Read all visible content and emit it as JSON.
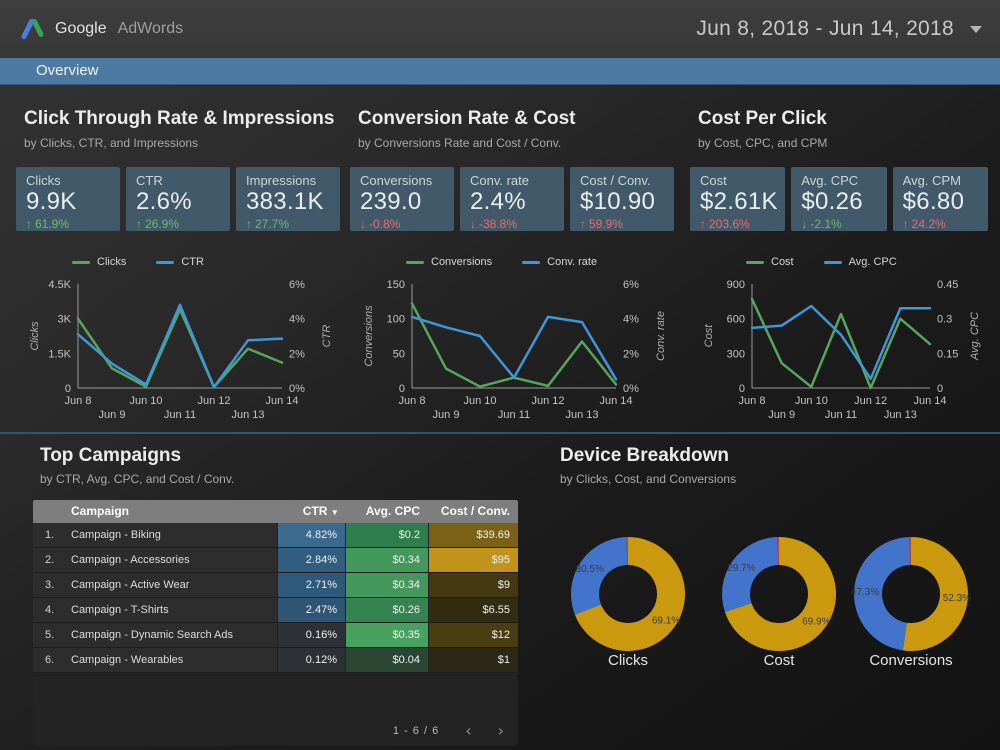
{
  "header": {
    "logo_primary": "Google",
    "logo_secondary": "AdWords",
    "date_range": "Jun 8, 2018 - Jun 14, 2018"
  },
  "tabbar": {
    "active_tab": "Overview"
  },
  "colors": {
    "tab_bar": "#4d7aa2",
    "card_bg": "#42596a",
    "line_green": "#58a55c",
    "line_blue": "#3d97d8",
    "donut_gold": "#cb990e",
    "donut_blue": "#4374cc",
    "donut_red": "#bf4236",
    "delta_good": "#68bb6c",
    "delta_bad": "#e86c6c",
    "table_header_bg": "#7e7e7e"
  },
  "sections": [
    {
      "title": "Click Through Rate & Impressions",
      "subtitle": "by Clicks, CTR, and Impressions",
      "cards": [
        {
          "label": "Clicks",
          "value": "9.9K",
          "delta": "61.9%",
          "direction": "up",
          "trend": "good"
        },
        {
          "label": "CTR",
          "value": "2.6%",
          "delta": "26.9%",
          "direction": "up",
          "trend": "good"
        },
        {
          "label": "Impressions",
          "value": "383.1K",
          "delta": "27.7%",
          "direction": "up",
          "trend": "good"
        }
      ]
    },
    {
      "title": "Conversion Rate & Cost",
      "subtitle": "by Conversions Rate and Cost / Conv.",
      "cards": [
        {
          "label": "Conversions",
          "value": "239.0",
          "delta": "-0.8%",
          "direction": "down",
          "trend": "bad"
        },
        {
          "label": "Conv. rate",
          "value": "2.4%",
          "delta": "-38.8%",
          "direction": "down",
          "trend": "bad"
        },
        {
          "label": "Cost / Conv.",
          "value": "$10.90",
          "delta": "59.9%",
          "direction": "up",
          "trend": "bad"
        }
      ]
    },
    {
      "title": "Cost Per Click",
      "subtitle": "by Cost, CPC, and CPM",
      "cards": [
        {
          "label": "Cost",
          "value": "$2.61K",
          "delta": "203.6%",
          "direction": "up",
          "trend": "bad"
        },
        {
          "label": "Avg. CPC",
          "value": "$0.26",
          "delta": "-2.1%",
          "direction": "down",
          "trend": "good"
        },
        {
          "label": "Avg. CPM",
          "value": "$6.80",
          "delta": "24.2%",
          "direction": "up",
          "trend": "bad"
        }
      ]
    }
  ],
  "chart_data": [
    {
      "id": "clicks-ctr",
      "type": "line",
      "x": [
        "Jun 8",
        "Jun 9",
        "Jun 10",
        "Jun 11",
        "Jun 12",
        "Jun 13",
        "Jun 14"
      ],
      "series": [
        {
          "name": "Clicks",
          "axis": "left",
          "color": "#58a55c",
          "values": [
            3000,
            850,
            60,
            3400,
            40,
            1700,
            1100
          ]
        },
        {
          "name": "CTR",
          "axis": "right",
          "color": "#3d97d8",
          "values": [
            3.1,
            1.4,
            0.2,
            4.8,
            0.05,
            2.75,
            2.85
          ]
        }
      ],
      "left_axis": {
        "title": "Clicks",
        "max": 4500,
        "ticks": [
          {
            "v": 0,
            "label": "0"
          },
          {
            "v": 1500,
            "label": "1.5K"
          },
          {
            "v": 3000,
            "label": "3K"
          },
          {
            "v": 4500,
            "label": "4.5K"
          }
        ]
      },
      "right_axis": {
        "title": "CTR",
        "max": 6,
        "ticks": [
          {
            "v": 0,
            "label": "0%"
          },
          {
            "v": 2,
            "label": "2%"
          },
          {
            "v": 4,
            "label": "4%"
          },
          {
            "v": 6,
            "label": "6%"
          }
        ]
      },
      "legend_position": "top",
      "grid": false
    },
    {
      "id": "conversions-rate",
      "type": "line",
      "x": [
        "Jun 8",
        "Jun 9",
        "Jun 10",
        "Jun 11",
        "Jun 12",
        "Jun 13",
        "Jun 14"
      ],
      "series": [
        {
          "name": "Conversions",
          "axis": "left",
          "color": "#58a55c",
          "values": [
            122,
            28,
            2,
            15,
            3,
            67,
            5
          ]
        },
        {
          "name": "Conv. rate",
          "axis": "right",
          "color": "#3d97d8",
          "values": [
            4.1,
            3.5,
            3.0,
            0.6,
            4.1,
            3.8,
            0.5
          ]
        }
      ],
      "left_axis": {
        "title": "Conversions",
        "max": 150,
        "ticks": [
          {
            "v": 0,
            "label": "0"
          },
          {
            "v": 50,
            "label": "50"
          },
          {
            "v": 100,
            "label": "100"
          },
          {
            "v": 150,
            "label": "150"
          }
        ]
      },
      "right_axis": {
        "title": "Conv. rate",
        "max": 6,
        "ticks": [
          {
            "v": 0,
            "label": "0%"
          },
          {
            "v": 2,
            "label": "2%"
          },
          {
            "v": 4,
            "label": "4%"
          },
          {
            "v": 6,
            "label": "6%"
          }
        ]
      },
      "legend_position": "top",
      "grid": false
    },
    {
      "id": "cost-cpc",
      "type": "line",
      "x": [
        "Jun 8",
        "Jun 9",
        "Jun 10",
        "Jun 11",
        "Jun 12",
        "Jun 13",
        "Jun 14"
      ],
      "series": [
        {
          "name": "Cost",
          "axis": "left",
          "color": "#58a55c",
          "values": [
            770,
            215,
            10,
            640,
            0,
            600,
            380
          ]
        },
        {
          "name": "Avg. CPC",
          "axis": "right",
          "color": "#3d97d8",
          "values": [
            0.26,
            0.27,
            0.355,
            0.23,
            0.04,
            0.345,
            0.345
          ]
        }
      ],
      "left_axis": {
        "title": "Cost",
        "max": 900,
        "ticks": [
          {
            "v": 0,
            "label": "0"
          },
          {
            "v": 300,
            "label": "300"
          },
          {
            "v": 600,
            "label": "600"
          },
          {
            "v": 900,
            "label": "900"
          }
        ]
      },
      "right_axis": {
        "title": "Avg. CPC",
        "max": 0.45,
        "ticks": [
          {
            "v": 0,
            "label": "0"
          },
          {
            "v": 0.15,
            "label": "0.15"
          },
          {
            "v": 0.3,
            "label": "0.3"
          },
          {
            "v": 0.45,
            "label": "0.45"
          }
        ]
      },
      "legend_position": "top",
      "grid": false
    },
    {
      "id": "device-clicks",
      "type": "pie",
      "title": "Clicks",
      "slices": [
        {
          "value": 69.1,
          "label": "69.1%",
          "color": "#cb990e"
        },
        {
          "value": 30.5,
          "label": "30.5%",
          "color": "#4374cc"
        },
        {
          "value": 0.4,
          "label": "",
          "color": "#bf4236"
        }
      ]
    },
    {
      "id": "device-cost",
      "type": "pie",
      "title": "Cost",
      "slices": [
        {
          "value": 69.9,
          "label": "69.9%",
          "color": "#cb990e"
        },
        {
          "value": 29.7,
          "label": "29.7%",
          "color": "#4374cc"
        },
        {
          "value": 0.4,
          "label": "",
          "color": "#bf4236"
        }
      ]
    },
    {
      "id": "device-conversions",
      "type": "pie",
      "title": "Conversions",
      "slices": [
        {
          "value": 52.3,
          "label": "52.3%",
          "color": "#cb990e"
        },
        {
          "value": 47.3,
          "label": "47.3%",
          "color": "#4374cc"
        },
        {
          "value": 0.4,
          "label": "",
          "color": "#bf4236"
        }
      ]
    }
  ],
  "top_campaigns": {
    "title": "Top Campaigns",
    "subtitle": "by CTR, Avg. CPC, and Cost / Conv.",
    "columns": [
      {
        "label": "Campaign",
        "sorted": false
      },
      {
        "label": "CTR",
        "sorted": true
      },
      {
        "label": "Avg. CPC",
        "sorted": false
      },
      {
        "label": "Cost / Conv.",
        "sorted": false
      }
    ],
    "rows": [
      {
        "index": "1.",
        "campaign": "Campaign - Biking",
        "ctr": {
          "text": "4.82%",
          "bg": "#3a6b8f"
        },
        "avg_cpc": {
          "text": "$0.2",
          "bg": "#2f7d4b"
        },
        "cost_conv": {
          "text": "$39.69",
          "bg": "#7b6116"
        }
      },
      {
        "index": "2.",
        "campaign": "Campaign - Accessories",
        "ctr": {
          "text": "2.84%",
          "bg": "#315d80"
        },
        "avg_cpc": {
          "text": "$0.34",
          "bg": "#44985b"
        },
        "cost_conv": {
          "text": "$95",
          "bg": "#c2931b"
        }
      },
      {
        "index": "3.",
        "campaign": "Campaign - Active Wear",
        "ctr": {
          "text": "2.71%",
          "bg": "#2f597b"
        },
        "avg_cpc": {
          "text": "$0.34",
          "bg": "#44985b"
        },
        "cost_conv": {
          "text": "$9",
          "bg": "#443911"
        }
      },
      {
        "index": "4.",
        "campaign": "Campaign - T-Shirts",
        "ctr": {
          "text": "2.47%",
          "bg": "#2e5574"
        },
        "avg_cpc": {
          "text": "$0.26",
          "bg": "#358350"
        },
        "cost_conv": {
          "text": "$6.55",
          "bg": "#322c10"
        }
      },
      {
        "index": "5.",
        "campaign": "Campaign - Dynamic Search Ads",
        "ctr": {
          "text": "0.16%",
          "bg": "#2d3035"
        },
        "avg_cpc": {
          "text": "$0.35",
          "bg": "#47a15f"
        },
        "cost_conv": {
          "text": "$12",
          "bg": "#493d11"
        }
      },
      {
        "index": "6.",
        "campaign": "Campaign - Wearables",
        "ctr": {
          "text": "0.12%",
          "bg": "#2d3035"
        },
        "avg_cpc": {
          "text": "$0.04",
          "bg": "#2c4634"
        },
        "cost_conv": {
          "text": "$1",
          "bg": "#2b2815"
        }
      }
    ],
    "pagination": {
      "range": "1 - 6 / 6",
      "prev_icon": "chevron-left",
      "next_icon": "chevron-right"
    }
  },
  "device_breakdown": {
    "title": "Device Breakdown",
    "subtitle": "by Clicks, Cost, and Conversions",
    "donut_labels": [
      "Clicks",
      "Cost",
      "Conversions"
    ]
  }
}
